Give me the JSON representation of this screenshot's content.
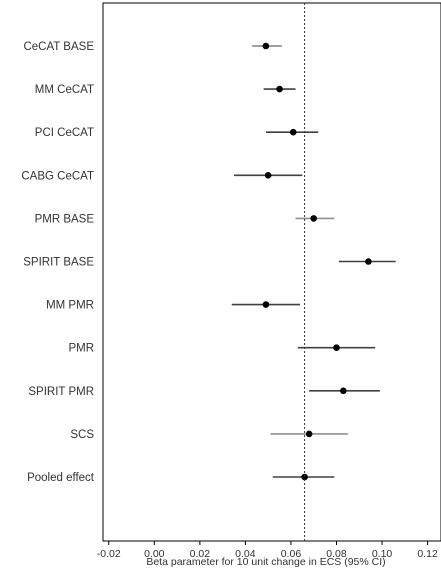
{
  "chart_data": {
    "type": "forest",
    "title": "",
    "xlabel": "Beta parameter for 10 unit change in ECS (95% CI)",
    "ylabel": "",
    "xlim": [
      -0.025,
      0.125
    ],
    "x_ticks": [
      -0.02,
      0.0,
      0.02,
      0.04,
      0.06,
      0.08,
      0.1,
      0.12
    ],
    "x_tick_labels": [
      "-0.02",
      "0.00",
      "0.02",
      "0.04",
      "0.06",
      "0.08",
      "0.10",
      "0.12"
    ],
    "reference_line": 0.066,
    "grid": false,
    "rows": [
      {
        "label": "CeCAT BASE",
        "estimate": 0.049,
        "lower": 0.043,
        "upper": 0.056,
        "ci_color": "#808080"
      },
      {
        "label": "MM CeCAT",
        "estimate": 0.055,
        "lower": 0.048,
        "upper": 0.062,
        "ci_color": "#404040"
      },
      {
        "label": "PCI CeCAT",
        "estimate": 0.061,
        "lower": 0.049,
        "upper": 0.072,
        "ci_color": "#404040"
      },
      {
        "label": "CABG CeCAT",
        "estimate": 0.05,
        "lower": 0.035,
        "upper": 0.065,
        "ci_color": "#404040"
      },
      {
        "label": "PMR BASE",
        "estimate": 0.07,
        "lower": 0.062,
        "upper": 0.079,
        "ci_color": "#909090"
      },
      {
        "label": "SPIRIT BASE",
        "estimate": 0.094,
        "lower": 0.081,
        "upper": 0.106,
        "ci_color": "#404040"
      },
      {
        "label": "MM PMR",
        "estimate": 0.049,
        "lower": 0.034,
        "upper": 0.064,
        "ci_color": "#404040"
      },
      {
        "label": "PMR",
        "estimate": 0.08,
        "lower": 0.063,
        "upper": 0.097,
        "ci_color": "#404040"
      },
      {
        "label": "SPIRIT PMR",
        "estimate": 0.083,
        "lower": 0.068,
        "upper": 0.099,
        "ci_color": "#404040"
      },
      {
        "label": "SCS",
        "estimate": 0.068,
        "lower": 0.051,
        "upper": 0.085,
        "ci_color": "#909090"
      },
      {
        "label": "Pooled effect",
        "estimate": 0.066,
        "lower": 0.052,
        "upper": 0.079,
        "ci_color": "#404040"
      }
    ],
    "colors": {
      "point": "#000000",
      "frame": "#000000",
      "reference_line": "#333333",
      "text": "#333333"
    }
  }
}
